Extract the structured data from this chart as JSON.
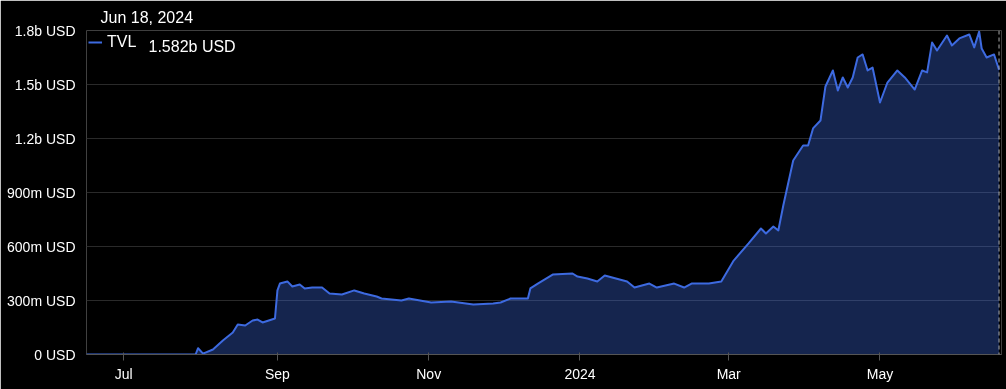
{
  "chart_data": {
    "type": "area",
    "title": "Jun 18, 2024",
    "x": [
      "2023-06-16",
      "2023-07-30",
      "2023-07-31",
      "2023-08-02",
      "2023-08-06",
      "2023-08-10",
      "2023-08-14",
      "2023-08-16",
      "2023-08-19",
      "2023-08-22",
      "2023-08-24",
      "2023-08-26",
      "2023-08-31",
      "2023-09-01",
      "2023-09-02",
      "2023-09-05",
      "2023-09-07",
      "2023-09-10",
      "2023-09-12",
      "2023-09-15",
      "2023-09-19",
      "2023-09-22",
      "2023-09-27",
      "2023-10-02",
      "2023-10-06",
      "2023-10-11",
      "2023-10-13",
      "2023-10-21",
      "2023-10-24",
      "2023-11-02",
      "2023-11-10",
      "2023-11-19",
      "2023-11-27",
      "2023-11-30",
      "2023-12-04",
      "2023-12-11",
      "2023-12-12",
      "2023-12-15",
      "2023-12-21",
      "2023-12-29",
      "2023-12-31",
      "2024-01-04",
      "2024-01-08",
      "2024-01-11",
      "2024-01-14",
      "2024-01-20",
      "2024-01-23",
      "2024-01-29",
      "2024-02-01",
      "2024-02-08",
      "2024-02-12",
      "2024-02-15",
      "2024-02-22",
      "2024-02-27",
      "2024-03-03",
      "2024-03-09",
      "2024-03-14",
      "2024-03-16",
      "2024-03-19",
      "2024-03-21",
      "2024-03-23",
      "2024-03-27",
      "2024-03-31",
      "2024-04-02",
      "2024-04-04",
      "2024-04-07",
      "2024-04-09",
      "2024-04-12",
      "2024-04-14",
      "2024-04-16",
      "2024-04-18",
      "2024-04-20",
      "2024-04-22",
      "2024-04-24",
      "2024-04-26",
      "2024-04-28",
      "2024-05-01",
      "2024-05-04",
      "2024-05-08",
      "2024-05-11",
      "2024-05-15",
      "2024-05-18",
      "2024-05-20",
      "2024-05-22",
      "2024-05-24",
      "2024-05-28",
      "2024-05-30",
      "2024-06-02",
      "2024-06-06",
      "2024-06-08",
      "2024-06-10",
      "2024-06-11",
      "2024-06-13",
      "2024-06-16",
      "2024-06-18"
    ],
    "series": [
      {
        "name": "TVL",
        "color": "#3d6ae0",
        "values": [
          0,
          0,
          35000000,
          5000000,
          28000000,
          78000000,
          122000000,
          167000000,
          161000000,
          189000000,
          194000000,
          178000000,
          200000000,
          356000000,
          394000000,
          406000000,
          378000000,
          389000000,
          367000000,
          372000000,
          372000000,
          339000000,
          333000000,
          356000000,
          339000000,
          322000000,
          311000000,
          300000000,
          311000000,
          289000000,
          294000000,
          278000000,
          283000000,
          289000000,
          311000000,
          311000000,
          367000000,
          394000000,
          444000000,
          450000000,
          433000000,
          422000000,
          406000000,
          439000000,
          428000000,
          406000000,
          372000000,
          394000000,
          372000000,
          394000000,
          372000000,
          394000000,
          394000000,
          406000000,
          522000000,
          617000000,
          700000000,
          672000000,
          711000000,
          689000000,
          828000000,
          1078000000,
          1161000000,
          1161000000,
          1256000000,
          1300000000,
          1489000000,
          1578000000,
          1467000000,
          1539000000,
          1483000000,
          1539000000,
          1650000000,
          1667000000,
          1578000000,
          1594000000,
          1400000000,
          1511000000,
          1578000000,
          1539000000,
          1472000000,
          1578000000,
          1567000000,
          1733000000,
          1689000000,
          1772000000,
          1717000000,
          1756000000,
          1778000000,
          1706000000,
          1794000000,
          1700000000,
          1650000000,
          1667000000,
          1582000000
        ]
      }
    ],
    "annotations": [
      "1.582b USD"
    ],
    "xlim": [
      "2023-06-16",
      "2024-06-19"
    ],
    "xticks": [
      {
        "value": "2023-07-01",
        "label": "Jul"
      },
      {
        "value": "2023-09-01",
        "label": "Sep"
      },
      {
        "value": "2023-11-01",
        "label": "Nov"
      },
      {
        "value": "2024-01-01",
        "label": "2024"
      },
      {
        "value": "2024-03-01",
        "label": "Mar"
      },
      {
        "value": "2024-05-01",
        "label": "May"
      }
    ],
    "ylim": [
      0,
      1800000000
    ],
    "yticks": [
      {
        "value": 0,
        "label": "0 USD"
      },
      {
        "value": 300000000,
        "label": "300m USD"
      },
      {
        "value": 600000000,
        "label": "600m USD"
      },
      {
        "value": 900000000,
        "label": "900m USD"
      },
      {
        "value": 1200000000,
        "label": "1.2b USD"
      },
      {
        "value": 1500000000,
        "label": "1.5b USD"
      },
      {
        "value": 1800000000,
        "label": "1.8b USD"
      }
    ],
    "ref_lines": [
      {
        "axis": "x",
        "value": "2024-06-18",
        "label": null,
        "color": "#aaaaaa",
        "line_style": "dashed"
      }
    ],
    "grid": "y",
    "legend": "top left"
  }
}
